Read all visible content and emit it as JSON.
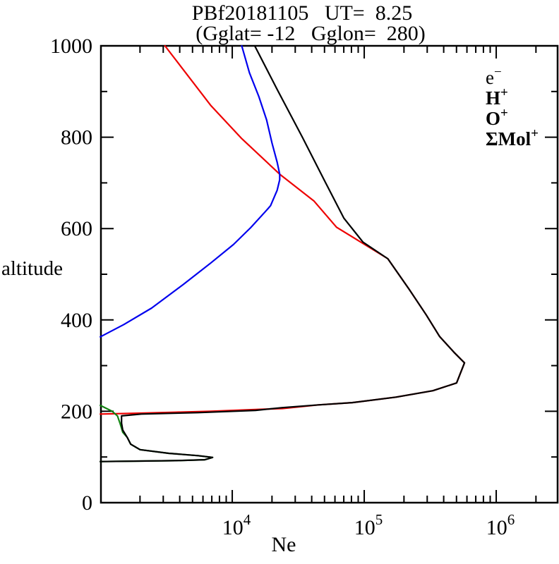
{
  "title": "PBf20181105   UT=  8.25",
  "subtitle": "(Gglat= -12   Gglon=  280)",
  "axes": {
    "x_label": "Ne",
    "y_label": "altitude",
    "x_scale": "log",
    "x_ticks_exponents": [
      4,
      5,
      6
    ],
    "x_range_log": [
      3.005,
      6.465
    ],
    "y_ticks": [
      0,
      200,
      400,
      600,
      800,
      1000
    ],
    "y_minor_ticks": [
      100,
      300,
      500,
      700,
      900
    ],
    "y_range": [
      0,
      1000
    ]
  },
  "legend": {
    "items": [
      {
        "base": "e",
        "sup": "−",
        "color": "#000000"
      },
      {
        "base": "H",
        "sup": "+",
        "color": "#0000ee"
      },
      {
        "base": "O",
        "sup": "+",
        "color": "#ee0000"
      },
      {
        "base": "ΣMol",
        "sup": "+",
        "color": "#128312"
      }
    ]
  },
  "chart_data": {
    "type": "line",
    "title": "PBf20181105  UT= 8.25 (Gglat= -12  Gglon= 280)",
    "xlabel": "Ne",
    "ylabel": "altitude",
    "x_axis": {
      "scale": "log",
      "min": 1000,
      "max": 2900000,
      "ticks": [
        10000,
        100000,
        1000000
      ]
    },
    "y_axis": {
      "min": 0,
      "max": 1000,
      "ticks": [
        0,
        200,
        400,
        600,
        800,
        1000
      ]
    },
    "grid": false,
    "legend_position": "upper-right-inside",
    "series": [
      {
        "name": "e-",
        "color": "#000000",
        "points_ne_alt": [
          [
            14800,
            1000
          ],
          [
            22300,
            900
          ],
          [
            34000,
            800
          ],
          [
            51000,
            700
          ],
          [
            70000,
            623
          ],
          [
            98000,
            570
          ],
          [
            151000,
            534
          ],
          [
            219000,
            467
          ],
          [
            295000,
            411
          ],
          [
            372000,
            364
          ],
          [
            479000,
            329
          ],
          [
            575000,
            306
          ],
          [
            501000,
            262
          ],
          [
            331000,
            245
          ],
          [
            174000,
            231
          ],
          [
            81000,
            219
          ],
          [
            45000,
            214
          ],
          [
            24000,
            208
          ],
          [
            15000,
            202
          ],
          [
            5500,
            197
          ],
          [
            2050,
            194
          ],
          [
            1450,
            190
          ],
          [
            1450,
            174
          ],
          [
            1480,
            159
          ],
          [
            1600,
            143
          ],
          [
            1700,
            128
          ],
          [
            2000,
            116
          ],
          [
            3300,
            108
          ],
          [
            5500,
            103
          ],
          [
            7100,
            99
          ],
          [
            6200,
            94
          ],
          [
            3700,
            92
          ],
          [
            2000,
            91
          ],
          [
            1000,
            90
          ]
        ]
      },
      {
        "name": "H+",
        "color": "#0000ee",
        "points_ne_alt": [
          [
            11800,
            1000
          ],
          [
            13500,
            941
          ],
          [
            15900,
            889
          ],
          [
            18200,
            838
          ],
          [
            20000,
            787
          ],
          [
            21900,
            745
          ],
          [
            22900,
            719
          ],
          [
            22900,
            707
          ],
          [
            21900,
            684
          ],
          [
            19500,
            650
          ],
          [
            17800,
            637
          ],
          [
            13800,
            602
          ],
          [
            10200,
            565
          ],
          [
            6900,
            525
          ],
          [
            4270,
            478
          ],
          [
            2450,
            426
          ],
          [
            1510,
            390
          ],
          [
            1000,
            363
          ]
        ]
      },
      {
        "name": "O+",
        "color": "#ee0000",
        "points_ne_alt": [
          [
            3090,
            1000
          ],
          [
            6900,
            869
          ],
          [
            11700,
            798
          ],
          [
            22900,
            719
          ],
          [
            41700,
            660
          ],
          [
            61700,
            603
          ],
          [
            151000,
            534
          ],
          [
            219000,
            467
          ],
          [
            295000,
            411
          ],
          [
            372000,
            364
          ],
          [
            479000,
            329
          ],
          [
            575000,
            306
          ],
          [
            501000,
            262
          ],
          [
            331000,
            245
          ],
          [
            174000,
            231
          ],
          [
            81000,
            219
          ],
          [
            45000,
            214
          ],
          [
            24000,
            206
          ],
          [
            15000,
            204
          ],
          [
            6900,
            200
          ],
          [
            3700,
            198
          ],
          [
            2050,
            196
          ],
          [
            1000,
            194
          ]
        ]
      },
      {
        "name": "ΣMol+",
        "color": "#128312",
        "points_ne_alt": [
          [
            1000,
            213
          ],
          [
            1230,
            200
          ],
          [
            1350,
            190
          ],
          [
            1410,
            174
          ],
          [
            1480,
            154
          ],
          [
            1600,
            143
          ],
          [
            1700,
            128
          ],
          [
            2000,
            116
          ],
          [
            3300,
            108
          ],
          [
            5500,
            103
          ],
          [
            7100,
            99
          ],
          [
            6200,
            94
          ],
          [
            3700,
            92
          ],
          [
            2000,
            91
          ],
          [
            1000,
            90
          ]
        ]
      }
    ]
  }
}
